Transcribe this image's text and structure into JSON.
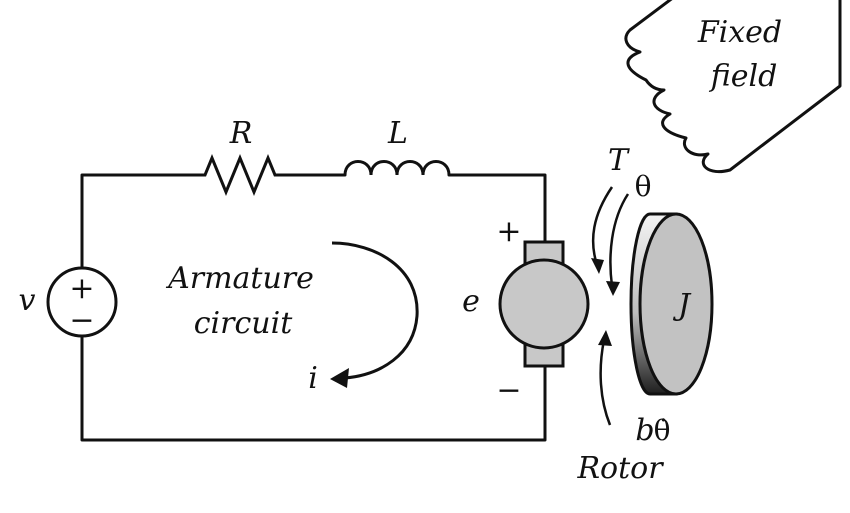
{
  "labels": {
    "resistor": "R",
    "inductor": "L",
    "voltage": "v",
    "source_plus": "+",
    "source_minus": "−",
    "armature_line1": "Armature",
    "armature_line2": "circuit",
    "current": "i",
    "back_emf": "e",
    "motor_plus": "+",
    "motor_minus": "−",
    "torque": "T",
    "angle": "θ",
    "inertia": "J",
    "friction_b": "b",
    "friction_theta_dot": "θ̇",
    "rotor": "Rotor",
    "field_line1": "Fixed",
    "field_line2": "field"
  },
  "colors": {
    "stroke": "#111111",
    "motor_fill": "#c8c8c8",
    "rotor_face": "#c2c2c2",
    "rotor_side_light": "#f2f2f2",
    "rotor_side_dark": "#2a2a2a"
  }
}
